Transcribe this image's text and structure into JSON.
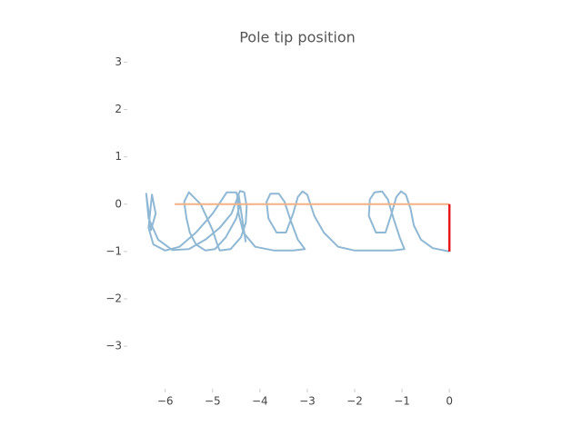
{
  "chart_data": {
    "type": "line",
    "title": "Pole tip position",
    "xlim": [
      -6.8,
      0.4
    ],
    "ylim": [
      -3.9,
      3.2
    ],
    "xticks": [
      {
        "value": -6,
        "label": "−6"
      },
      {
        "value": -5,
        "label": "−5"
      },
      {
        "value": -4,
        "label": "−4"
      },
      {
        "value": -3,
        "label": "−3"
      },
      {
        "value": -2,
        "label": "−2"
      },
      {
        "value": -1,
        "label": "−1"
      },
      0
    ],
    "yticks": [
      {
        "value": -3,
        "label": "−3"
      },
      {
        "value": -2,
        "label": "−2"
      },
      {
        "value": -1,
        "label": "−1"
      },
      0,
      1,
      2,
      3
    ],
    "series": [
      {
        "color": "#8fb8d4",
        "x": [
          0,
          -0.35,
          -0.6,
          -0.75,
          -0.82,
          -0.92,
          -1.02,
          -1.12,
          -1.22,
          -1.35,
          -1.55,
          -1.7,
          -1.68,
          -1.58,
          -1.42,
          -1.3,
          -1.18,
          -1.05,
          -0.95,
          -1.2,
          -1.6,
          -2.0,
          -2.35,
          -2.65,
          -2.85,
          -2.95,
          -3.0,
          -3.1,
          -3.2,
          -3.3,
          -3.45,
          -3.65,
          -3.82,
          -3.86,
          -3.78,
          -3.6,
          -3.48,
          -3.35,
          -3.2,
          -3.05,
          -3.3,
          -3.7,
          -4.1,
          -4.35,
          -4.45,
          -4.48,
          -4.42,
          -4.33,
          -4.28,
          -4.3,
          -4.4,
          -4.62,
          -4.85,
          -4.9,
          -5.0,
          -5.25,
          -5.5,
          -5.6,
          -5.55,
          -5.48,
          -5.35,
          -5.15,
          -4.95,
          -4.72,
          -4.5,
          -4.42,
          -4.5,
          -4.7,
          -5.0,
          -5.35,
          -5.7,
          -6.0,
          -6.25,
          -6.35,
          -6.28,
          -6.2,
          -6.3,
          -6.4,
          -6.35,
          -6.15,
          -5.85,
          -5.5,
          -5.15,
          -4.85,
          -4.6,
          -4.45,
          -4.3
        ],
        "values": [
          -1,
          -0.93,
          -0.75,
          -0.45,
          -0.1,
          0.2,
          0.27,
          0.15,
          -0.2,
          -0.6,
          -0.6,
          -0.25,
          0.1,
          0.25,
          0.27,
          0.1,
          -0.3,
          -0.7,
          -0.95,
          -0.98,
          -0.98,
          -0.98,
          -0.9,
          -0.6,
          -0.25,
          0.05,
          0.2,
          0.27,
          0.15,
          -0.2,
          -0.6,
          -0.6,
          -0.3,
          0.05,
          0.22,
          0.22,
          0.05,
          -0.35,
          -0.75,
          -0.95,
          -0.98,
          -0.98,
          -0.9,
          -0.6,
          -0.2,
          0.15,
          0.28,
          0.25,
          -0.05,
          -0.4,
          -0.7,
          -0.95,
          -0.98,
          -0.85,
          -0.55,
          0.0,
          0.25,
          0.05,
          -0.3,
          -0.6,
          -0.85,
          -0.98,
          -0.95,
          -0.7,
          -0.3,
          0.0,
          0.25,
          0.25,
          -0.2,
          -0.6,
          -0.9,
          -0.98,
          -0.85,
          -0.5,
          0.2,
          -0.2,
          -0.55,
          0.22,
          -0.3,
          -0.75,
          -0.97,
          -0.95,
          -0.75,
          -0.5,
          -0.2,
          0.2,
          -0.8
        ]
      },
      {
        "color": "#f4b183",
        "x": [
          -5.8,
          0
        ],
        "values": [
          0,
          0
        ]
      },
      {
        "color": "#e8191d",
        "x": [
          0,
          0
        ],
        "values": [
          0,
          -1
        ]
      }
    ]
  }
}
